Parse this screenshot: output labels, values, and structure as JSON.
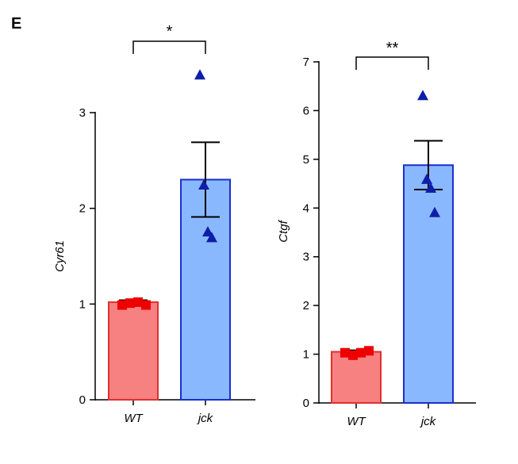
{
  "panel_label": "E",
  "chart_data": [
    {
      "type": "bar",
      "title": "",
      "ylabel": "Cyr61",
      "xlabel": "",
      "categories": [
        "WT",
        "jck"
      ],
      "ylim": [
        0,
        3
      ],
      "yticks": [
        0,
        1,
        2,
        3
      ],
      "grid": false,
      "bar_fill_colors": [
        "#f78080",
        "#8ab8ff"
      ],
      "bar_edge_colors": [
        "#e03030",
        "#1a2fd0"
      ],
      "marker_colors": [
        "#ee0000",
        "#0d1fa8"
      ],
      "marker_shapes": [
        "square",
        "triangle"
      ],
      "series": [
        {
          "name": "",
          "values": [
            1.02,
            2.3
          ],
          "errors": [
            0.02,
            0.39
          ],
          "points": [
            [
              0.99,
              1.01,
              1.02,
              0.99
            ],
            [
              3.4,
              2.25,
              1.76,
              1.7
            ]
          ]
        }
      ],
      "significance": {
        "label": "*",
        "between": [
          "WT",
          "jck"
        ]
      }
    },
    {
      "type": "bar",
      "title": "",
      "ylabel": "Ctgf",
      "xlabel": "",
      "categories": [
        "WT",
        "jck"
      ],
      "ylim": [
        0,
        7
      ],
      "yticks": [
        0,
        1,
        2,
        3,
        4,
        5,
        6,
        7
      ],
      "grid": false,
      "bar_fill_colors": [
        "#f78080",
        "#8ab8ff"
      ],
      "bar_edge_colors": [
        "#e03030",
        "#1a2fd0"
      ],
      "marker_colors": [
        "#ee0000",
        "#0d1fa8"
      ],
      "marker_shapes": [
        "square",
        "triangle"
      ],
      "series": [
        {
          "name": "",
          "values": [
            1.05,
            4.88
          ],
          "errors": [
            0.03,
            0.5
          ],
          "points": [
            [
              1.03,
              0.98,
              1.03,
              1.07
            ],
            [
              6.32,
              4.6,
              4.42,
              3.92
            ]
          ]
        }
      ],
      "significance": {
        "label": "**",
        "between": [
          "WT",
          "jck"
        ]
      }
    }
  ]
}
